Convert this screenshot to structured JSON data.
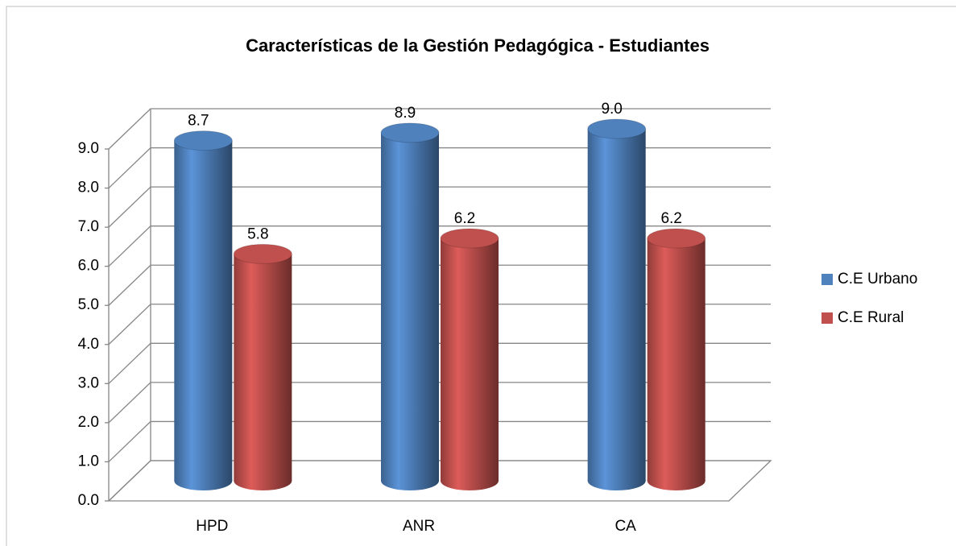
{
  "chart_data": {
    "type": "bar3d",
    "title": "Características de la Gestión Pedagógica - Estudiantes",
    "categories": [
      "HPD",
      "ANR",
      "CA"
    ],
    "series": [
      {
        "name": "C.E Urbano",
        "color": "#4f81bd",
        "values": [
          8.7,
          8.9,
          9.0
        ],
        "value_labels": [
          "8.7",
          "8.9",
          "9.0"
        ]
      },
      {
        "name": "C.E Rural",
        "color": "#c0504d",
        "values": [
          5.8,
          6.2,
          6.2
        ],
        "value_labels": [
          "5.8",
          "6.2",
          "6.2"
        ]
      }
    ],
    "ylim": [
      0,
      9
    ],
    "yticks": [
      {
        "value": 0,
        "label": "0.0"
      },
      {
        "value": 1,
        "label": "1.0"
      },
      {
        "value": 2,
        "label": "2.0"
      },
      {
        "value": 3,
        "label": "3.0"
      },
      {
        "value": 4,
        "label": "4.0"
      },
      {
        "value": 5,
        "label": "5.0"
      },
      {
        "value": 6,
        "label": "6.0"
      },
      {
        "value": 7,
        "label": "7.0"
      },
      {
        "value": 8,
        "label": "8.0"
      },
      {
        "value": 9,
        "label": "9.0"
      }
    ],
    "grid": true,
    "legend": "right"
  }
}
